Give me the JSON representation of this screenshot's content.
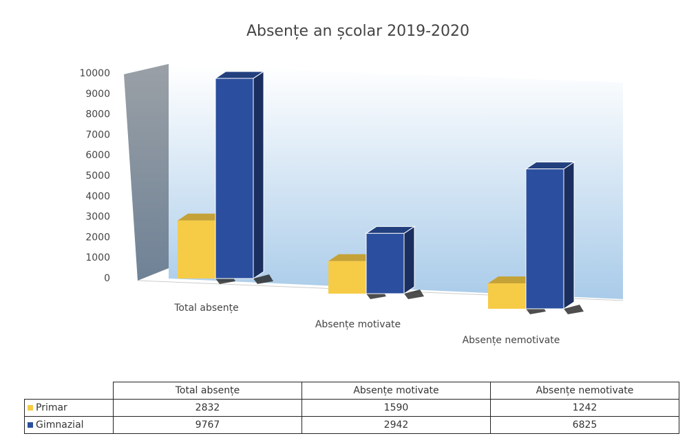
{
  "chart_data": {
    "type": "bar3d",
    "title": "Absențe an școlar 2019-2020",
    "categories": [
      "Total absențe",
      "Absențe motivate",
      "Absențe nemotivate"
    ],
    "series": [
      {
        "name": "Primar",
        "color": "#f6cb46",
        "values": [
          2832,
          1590,
          1242
        ]
      },
      {
        "name": "Gimnazial",
        "color": "#2b4f9e",
        "values": [
          9767,
          2942,
          6825
        ]
      }
    ],
    "ylim": [
      0,
      10000
    ],
    "yticks": [
      0,
      1000,
      2000,
      3000,
      4000,
      5000,
      6000,
      7000,
      8000,
      9000,
      10000
    ]
  }
}
